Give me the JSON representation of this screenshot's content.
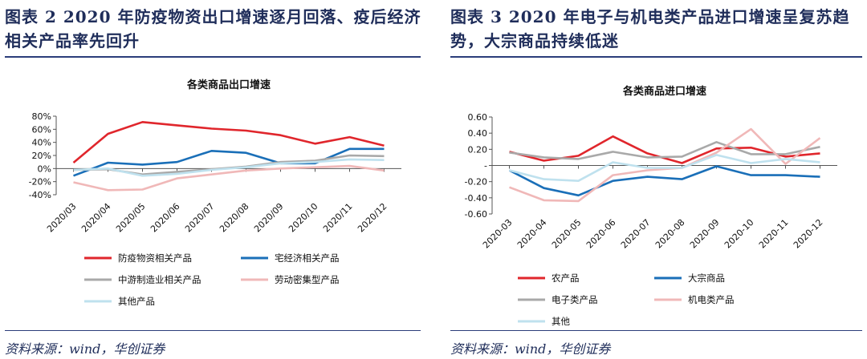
{
  "left": {
    "figure_title": "图表 2   2020 年防疫物资出口增速逐月回落、疫后经济相关产品率先回升",
    "source": "资料来源：wind，华创证券"
  },
  "right": {
    "figure_title": "图表 3   2020 年电子与机电类产品进口增速呈复苏趋势，大宗商品持续低迷",
    "source": "资料来源：wind，华创证券"
  },
  "chart_data": [
    {
      "type": "line",
      "title": "各类商品出口增速",
      "x": [
        "2020/03",
        "2020/04",
        "2020/05",
        "2020/06",
        "2020/07",
        "2020/08",
        "2020/09",
        "2020/10",
        "2020/11",
        "2020/12"
      ],
      "y_ticks": [
        "80%",
        "60%",
        "40%",
        "20%",
        "0%",
        "-20%",
        "-40%"
      ],
      "y_tick_values": [
        80,
        60,
        40,
        20,
        0,
        -20,
        -40
      ],
      "ylim": [
        -40,
        80
      ],
      "series": [
        {
          "name": "防疫物资相关产品",
          "color": "#e0262c",
          "values": [
            9,
            53,
            71,
            66,
            61,
            58,
            51,
            38,
            48,
            35
          ]
        },
        {
          "name": "宅经济相关产品",
          "color": "#1a6fb8",
          "values": [
            -11,
            9,
            6,
            10,
            27,
            24,
            8,
            8,
            30,
            30
          ]
        },
        {
          "name": "中游制造业相关产品",
          "color": "#a9a9a9",
          "values": [
            -2,
            -1,
            -9,
            -5,
            -1,
            3,
            10,
            12,
            20,
            19
          ]
        },
        {
          "name": "劳动密集型产品",
          "color": "#f0b8b8",
          "values": [
            -21,
            -33,
            -32,
            -15,
            -9,
            -3,
            0,
            2,
            4,
            -3
          ]
        },
        {
          "name": "其他产品",
          "color": "#bfe1ee",
          "values": [
            -2,
            0,
            -11,
            -8,
            -2,
            2,
            8,
            10,
            14,
            13
          ]
        }
      ]
    },
    {
      "type": "line",
      "title": "各类商品进口增速",
      "x": [
        "2020-03",
        "2020-04",
        "2020-05",
        "2020-06",
        "2020-07",
        "2020-08",
        "2020-09",
        "2020-10",
        "2020-11",
        "2020-12"
      ],
      "y_ticks": [
        "0.60",
        "0.40",
        "0.20",
        "-",
        "-0.20",
        "-0.40",
        "-0.60"
      ],
      "y_tick_values": [
        0.6,
        0.4,
        0.2,
        0,
        -0.2,
        -0.4,
        -0.6
      ],
      "ylim": [
        -0.6,
        0.6
      ],
      "series": [
        {
          "name": "农产品",
          "color": "#e0262c",
          "values": [
            0.17,
            0.06,
            0.12,
            0.36,
            0.15,
            0.03,
            0.21,
            0.22,
            0.11,
            0.15
          ]
        },
        {
          "name": "大宗商品",
          "color": "#1a6fb8",
          "values": [
            -0.06,
            -0.28,
            -0.37,
            -0.19,
            -0.14,
            -0.17,
            -0.01,
            -0.12,
            -0.12,
            -0.14
          ]
        },
        {
          "name": "电子类产品",
          "color": "#a9a9a9",
          "values": [
            0.16,
            0.1,
            0.08,
            0.17,
            0.1,
            0.11,
            0.29,
            0.14,
            0.14,
            0.23
          ]
        },
        {
          "name": "机电类产品",
          "color": "#f0b8b8",
          "values": [
            -0.27,
            -0.43,
            -0.44,
            -0.12,
            -0.06,
            -0.03,
            0.16,
            0.45,
            0.02,
            0.34
          ]
        },
        {
          "name": "其他",
          "color": "#bfe1ee",
          "values": [
            -0.06,
            -0.17,
            -0.19,
            0.04,
            -0.03,
            -0.03,
            0.13,
            0.03,
            0.08,
            0.04
          ]
        }
      ]
    }
  ]
}
